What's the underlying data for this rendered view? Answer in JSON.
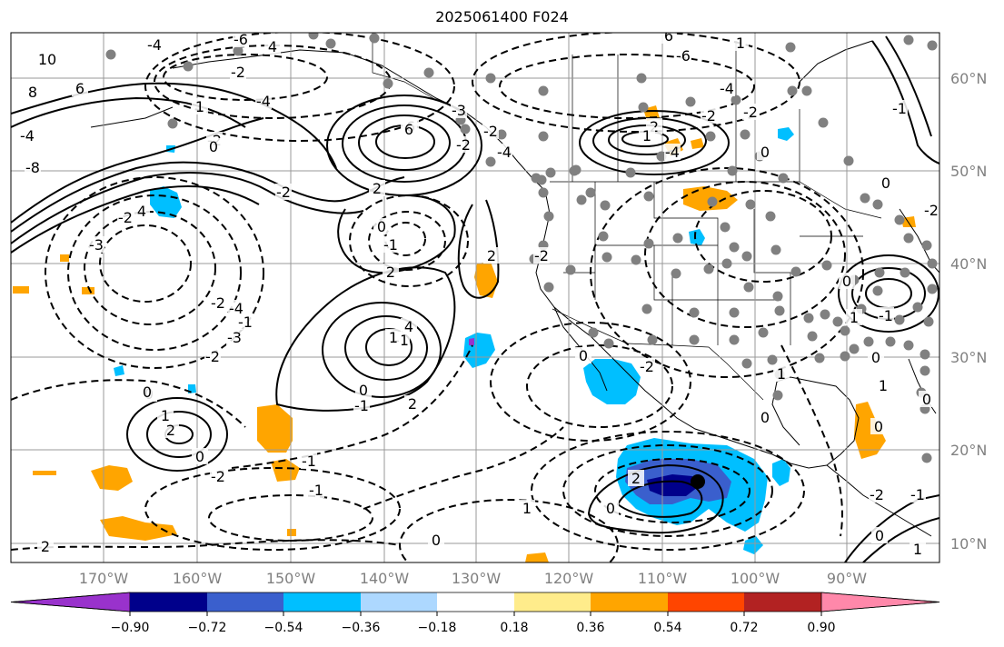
{
  "title": "2025061400 F024",
  "lat_labels": [
    "60°N",
    "50°N",
    "40°N",
    "30°N",
    "20°N",
    "10°N"
  ],
  "lon_labels": [
    "170°W",
    "160°W",
    "150°W",
    "140°W",
    "130°W",
    "120°W",
    "110°W",
    "100°W",
    "90°W"
  ],
  "colorbar": {
    "colors": [
      "#9932cc",
      "#00008b",
      "#3a5fcd",
      "#00bfff",
      "#add8ff",
      "#ffffff",
      "#ffec8b",
      "#ffa500",
      "#ff4500",
      "#b22222",
      "#ff88aa"
    ],
    "tick_labels": [
      "−0.90",
      "−0.72",
      "−0.54",
      "−0.36",
      "−0.18",
      "0.18",
      "0.36",
      "0.54",
      "0.72",
      "0.90"
    ]
  },
  "contour_labels": [
    "-6",
    "4",
    "10",
    "8",
    "6",
    "-4",
    "1",
    "-2",
    "-2",
    "-4",
    "6",
    "-3",
    "-2",
    "-4",
    "-2",
    "2",
    "-4",
    "-2",
    "-2",
    "-4",
    "-6",
    "6",
    "1",
    "-8",
    "-4",
    "-3",
    "-2",
    "-2",
    "4",
    "2",
    "6",
    "2",
    "-2",
    "-1",
    "0",
    "-2",
    "0",
    "-4",
    "-2",
    "-1",
    "-3",
    "0",
    "2",
    "1",
    "0",
    "-1",
    "0",
    "-1",
    "4",
    "2",
    "2",
    "1",
    "0",
    "-2",
    "-1",
    "-1",
    "1",
    "0",
    "2",
    "0",
    "2",
    "0",
    "-2",
    "1",
    "0",
    "1",
    "0",
    "0",
    "-2",
    "-1",
    "0",
    "1",
    "1",
    "-1",
    "-1",
    "-2",
    "0",
    "0",
    "1",
    "0",
    "0"
  ],
  "marker_station_color": "#808080",
  "marker_center_color": "#000000"
}
